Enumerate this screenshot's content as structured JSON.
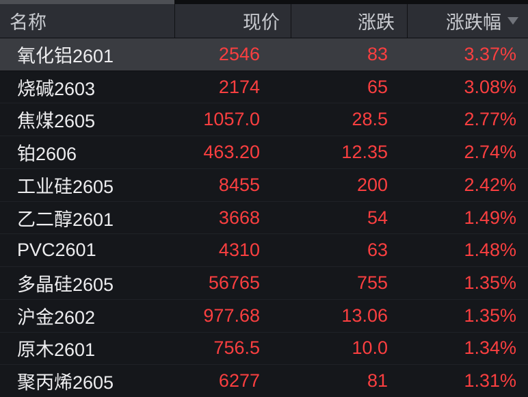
{
  "table": {
    "columns": [
      {
        "key": "name",
        "label": "名称"
      },
      {
        "key": "price",
        "label": "现价"
      },
      {
        "key": "change",
        "label": "涨跌"
      },
      {
        "key": "pct",
        "label": "涨跌幅",
        "sort": "desc"
      }
    ],
    "sort_icon": "caret-down",
    "selected_row_index": 0,
    "rows": [
      {
        "name": "氧化铝2601",
        "price": "2546",
        "change": "83",
        "pct": "3.37%"
      },
      {
        "name": "烧碱2603",
        "price": "2174",
        "change": "65",
        "pct": "3.08%"
      },
      {
        "name": "焦煤2605",
        "price": "1057.0",
        "change": "28.5",
        "pct": "2.77%"
      },
      {
        "name": "铂2606",
        "price": "463.20",
        "change": "12.35",
        "pct": "2.74%"
      },
      {
        "name": "工业硅2605",
        "price": "8455",
        "change": "200",
        "pct": "2.42%"
      },
      {
        "name": "乙二醇2601",
        "price": "3668",
        "change": "54",
        "pct": "1.49%"
      },
      {
        "name": "PVC2601",
        "price": "4310",
        "change": "63",
        "pct": "1.48%"
      },
      {
        "name": "多晶硅2605",
        "price": "56765",
        "change": "755",
        "pct": "1.35%"
      },
      {
        "name": "沪金2602",
        "price": "977.68",
        "change": "13.06",
        "pct": "1.35%"
      },
      {
        "name": "原木2601",
        "price": "756.5",
        "change": "10.0",
        "pct": "1.34%"
      },
      {
        "name": "聚丙烯2605",
        "price": "6277",
        "change": "81",
        "pct": "1.31%"
      }
    ],
    "colors": {
      "up": "#fa3f40",
      "name_text": "#ededef",
      "header_text": "#c9cbd0",
      "header_bg": "#2c2e34",
      "selected_row_bg": "#3a3c41",
      "page_bg": "#15171b"
    }
  }
}
